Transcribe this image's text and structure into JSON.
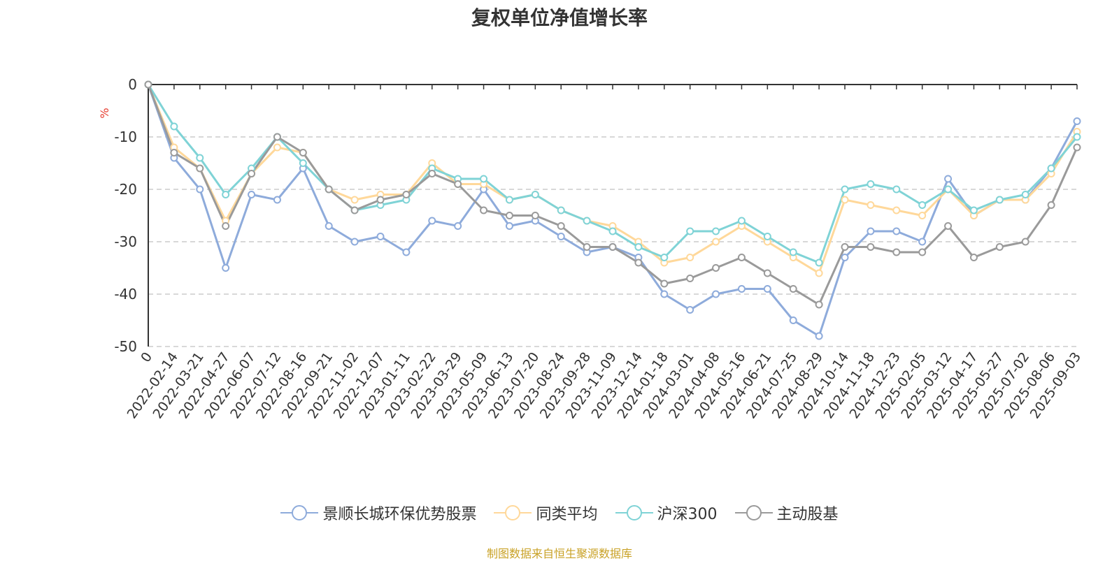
{
  "title": "复权单位净值增长率",
  "source_note": "制图数据来自恒生聚源数据库",
  "colors": {
    "fund": "#8eabdb",
    "peer_avg": "#ffd89a",
    "csi300": "#7fd3d6",
    "active_equity": "#9a9a9a",
    "source_text": "#c9a227",
    "ylabel": "#e63b2e"
  },
  "chart_data": {
    "type": "line",
    "ylabel": "%",
    "ylim": [
      -50,
      0
    ],
    "yticks": [
      0,
      -10,
      -20,
      -30,
      -40,
      -50
    ],
    "grid": true,
    "legend_position": "bottom",
    "x_tick_labels": [
      "0",
      "2022-02-14",
      "2022-03-21",
      "2022-04-27",
      "2022-06-07",
      "2022-07-12",
      "2022-08-16",
      "2022-09-21",
      "2022-11-02",
      "2022-12-07",
      "2023-01-11",
      "2023-02-22",
      "2023-03-29",
      "2023-05-09",
      "2023-06-13",
      "2023-07-20",
      "2023-08-24",
      "2023-09-28",
      "2023-11-09",
      "2023-12-14",
      "2024-01-18",
      "2024-03-01",
      "2024-04-08",
      "2024-05-16",
      "2024-06-21",
      "2024-07-25",
      "2024-08-29",
      "2024-10-14",
      "2024-11-18",
      "2024-12-23",
      "2025-02-05",
      "2025-03-12",
      "2025-04-17",
      "2025-05-27",
      "2025-07-02",
      "2025-08-06",
      "2025-09-03"
    ],
    "x": [
      "0",
      "2022-02-14",
      "2022-03-21",
      "2022-04-27",
      "2022-06-07",
      "2022-07-12",
      "2022-08-16",
      "2022-09-21",
      "2022-11-02",
      "2022-12-07",
      "2023-01-11",
      "2023-02-22",
      "2023-03-29",
      "2023-05-09",
      "2023-06-13",
      "2023-07-20",
      "2023-08-24",
      "2023-09-28",
      "2023-11-09",
      "2023-12-14",
      "2024-01-18",
      "2024-03-01",
      "2024-04-08",
      "2024-05-16",
      "2024-06-21",
      "2024-07-25",
      "2024-08-29",
      "2024-10-14",
      "2024-11-18",
      "2024-12-23",
      "2025-02-05",
      "2025-03-12",
      "2025-04-17",
      "2025-05-27",
      "2025-07-02",
      "2025-08-06",
      "2025-09-03"
    ],
    "series": [
      {
        "name": "景顺长城环保优势股票",
        "values": [
          0,
          -14,
          -20,
          -35,
          -21,
          -22,
          -16,
          -27,
          -30,
          -29,
          -32,
          -26,
          -27,
          -20,
          -27,
          -26,
          -29,
          -32,
          -31,
          -33,
          -40,
          -43,
          -40,
          -39,
          -39,
          -45,
          -48,
          -33,
          -28,
          -28,
          -30,
          -18,
          -25,
          -22,
          -22,
          -16,
          -7
        ]
      },
      {
        "name": "同类平均",
        "values": [
          0,
          -12,
          -16,
          -26,
          -17,
          -12,
          -13,
          -20,
          -22,
          -21,
          -21,
          -15,
          -19,
          -19,
          -22,
          -21,
          -24,
          -26,
          -27,
          -30,
          -34,
          -33,
          -30,
          -27,
          -30,
          -33,
          -36,
          -22,
          -23,
          -24,
          -25,
          -20,
          -25,
          -22,
          -22,
          -17,
          -9
        ]
      },
      {
        "name": "沪深300",
        "values": [
          0,
          -8,
          -14,
          -21,
          -16,
          -10,
          -15,
          -20,
          -24,
          -23,
          -22,
          -16,
          -18,
          -18,
          -22,
          -21,
          -24,
          -26,
          -28,
          -31,
          -33,
          -28,
          -28,
          -26,
          -29,
          -32,
          -34,
          -20,
          -19,
          -20,
          -23,
          -20,
          -24,
          -22,
          -21,
          -16,
          -10
        ]
      },
      {
        "name": "主动股基",
        "values": [
          0,
          -13,
          -16,
          -27,
          -17,
          -10,
          -13,
          -20,
          -24,
          -22,
          -21,
          -17,
          -19,
          -24,
          -25,
          -25,
          -27,
          -31,
          -31,
          -34,
          -38,
          -37,
          -35,
          -33,
          -36,
          -39,
          -42,
          -31,
          -31,
          -32,
          -32,
          -27,
          -33,
          -31,
          -30,
          -23,
          -12
        ]
      }
    ]
  }
}
